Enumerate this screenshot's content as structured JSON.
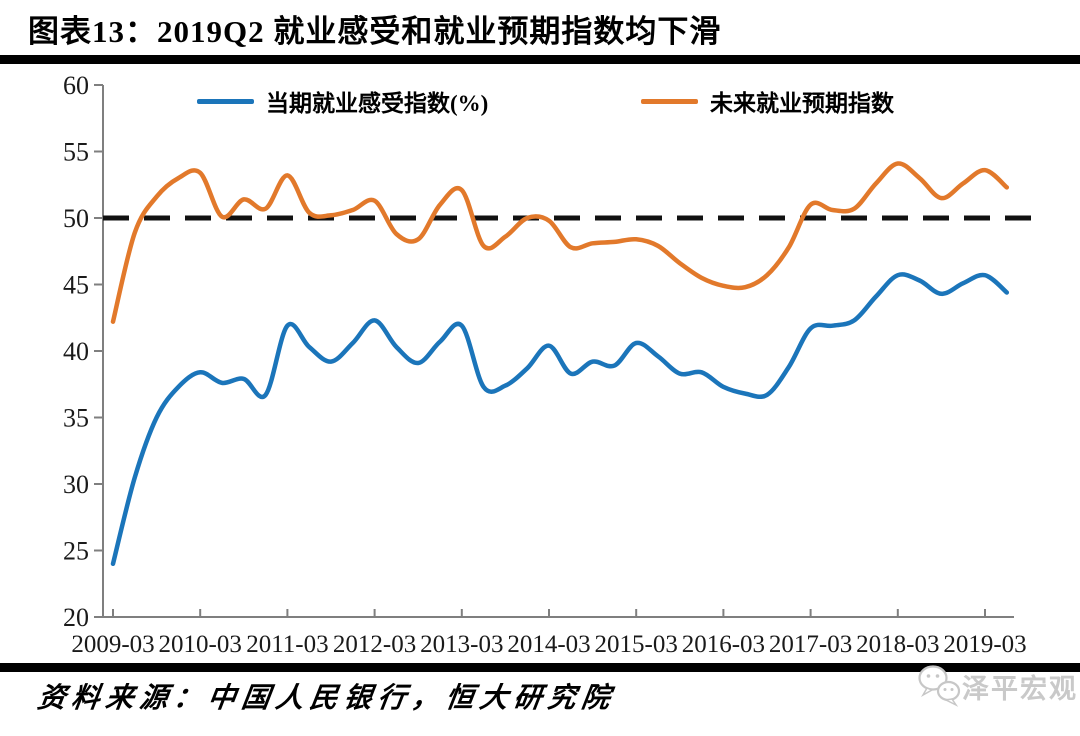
{
  "title": "图表13：2019Q2 就业感受和就业预期指数均下滑",
  "source": "资料来源：中国人民银行，恒大研究院",
  "watermark": "泽平宏观",
  "colors": {
    "blue": "#1B75BA",
    "orange": "#E2792B",
    "reference": "#111111",
    "axis": "#7f7f7f"
  },
  "chart_data": {
    "type": "line",
    "title": "图表13：2019Q2 就业感受和就业预期指数均下滑",
    "x": [
      "2009-03",
      "2009-06",
      "2009-09",
      "2009-12",
      "2010-03",
      "2010-06",
      "2010-09",
      "2010-12",
      "2011-03",
      "2011-06",
      "2011-09",
      "2011-12",
      "2012-03",
      "2012-06",
      "2012-09",
      "2012-12",
      "2013-03",
      "2013-06",
      "2013-09",
      "2013-12",
      "2014-03",
      "2014-06",
      "2014-09",
      "2014-12",
      "2015-03",
      "2015-06",
      "2015-09",
      "2015-12",
      "2016-03",
      "2016-06",
      "2016-09",
      "2016-12",
      "2017-03",
      "2017-06",
      "2017-09",
      "2017-12",
      "2018-03",
      "2018-06",
      "2018-09",
      "2018-12",
      "2019-03",
      "2019-06"
    ],
    "x_tick_labels": [
      "2009-03",
      "2010-03",
      "2011-03",
      "2012-03",
      "2013-03",
      "2014-03",
      "2015-03",
      "2016-03",
      "2017-03",
      "2018-03",
      "2019-03"
    ],
    "y_ticks": [
      20,
      25,
      30,
      35,
      40,
      45,
      50,
      55,
      60
    ],
    "ylim": [
      20,
      60
    ],
    "grid": false,
    "legend_position": "top",
    "reference_line": 50,
    "series": [
      {
        "name": "当期就业感受指数(%)",
        "color": "#1B75BA",
        "values": [
          24.0,
          30.5,
          35.0,
          37.3,
          38.4,
          37.6,
          37.9,
          36.7,
          41.9,
          40.3,
          39.2,
          40.6,
          42.3,
          40.3,
          39.1,
          40.7,
          41.9,
          37.3,
          37.4,
          38.7,
          40.4,
          38.3,
          39.2,
          38.9,
          40.6,
          39.6,
          38.3,
          38.4,
          37.3,
          36.8,
          36.7,
          38.8,
          41.7,
          41.9,
          42.3,
          44.1,
          45.7,
          45.3,
          44.3,
          45.1,
          45.7,
          44.4
        ]
      },
      {
        "name": "未来就业预期指数",
        "color": "#E2792B",
        "values": [
          42.2,
          48.9,
          51.6,
          53.0,
          53.4,
          50.1,
          51.4,
          50.7,
          53.2,
          50.4,
          50.2,
          50.6,
          51.3,
          48.8,
          48.4,
          51.0,
          52.1,
          47.9,
          48.6,
          50.0,
          49.8,
          47.8,
          48.1,
          48.2,
          48.4,
          47.9,
          46.6,
          45.5,
          44.9,
          44.8,
          45.7,
          47.8,
          51.0,
          50.6,
          50.7,
          52.6,
          54.1,
          53.0,
          51.5,
          52.6,
          53.6,
          52.3
        ]
      }
    ]
  }
}
